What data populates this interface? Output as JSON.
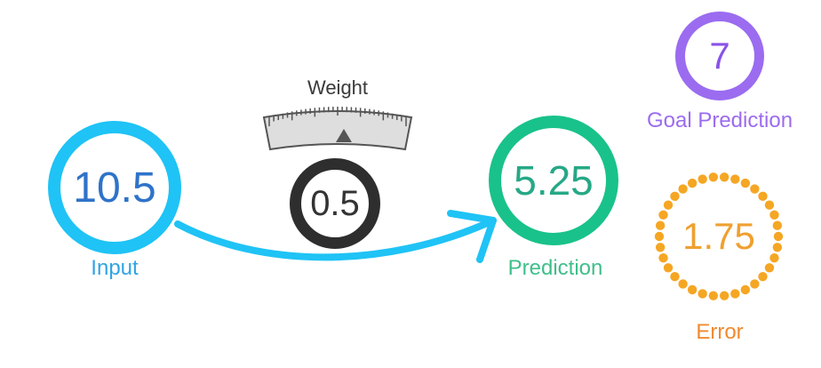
{
  "input": {
    "value": "10.5",
    "label": "Input"
  },
  "weight": {
    "title": "Weight",
    "value": "0.5",
    "gauge_level": 0.5
  },
  "prediction": {
    "value": "5.25",
    "label": "Prediction"
  },
  "goal": {
    "value": "7",
    "label": "Goal Prediction"
  },
  "error": {
    "value": "1.75",
    "label": "Error"
  },
  "colors": {
    "input": "#1fc3f5",
    "prediction": "#19c28a",
    "weight": "#2e2e2e",
    "goal": "#9b6cf0",
    "error": "#f5a623",
    "arrow": "#1fc3f5"
  },
  "icons": {
    "gauge": "dial-gauge-icon",
    "arrow": "curved-arrow-icon"
  }
}
